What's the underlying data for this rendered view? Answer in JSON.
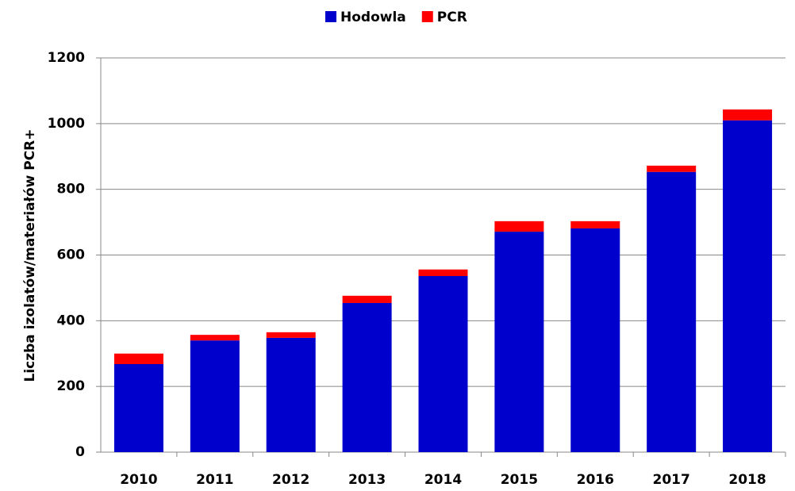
{
  "chart_data": {
    "type": "stacked_bar",
    "y_label": "Liczba izolatów/materiałów PCR+",
    "categories": [
      "2010",
      "2011",
      "2012",
      "2013",
      "2014",
      "2015",
      "2016",
      "2017",
      "2018"
    ],
    "series": [
      {
        "name": "Hodowla",
        "color": "#0000cc",
        "values": [
          268,
          340,
          348,
          454,
          536,
          671,
          681,
          853,
          1010
        ]
      },
      {
        "name": "PCR",
        "color": "#ff0000",
        "values": [
          32,
          17,
          17,
          22,
          20,
          32,
          22,
          19,
          33
        ]
      }
    ],
    "ylim": [
      0,
      1200
    ],
    "yticks": [
      0,
      200,
      400,
      600,
      800,
      1000,
      1200
    ],
    "grid": true,
    "legend": "top"
  }
}
